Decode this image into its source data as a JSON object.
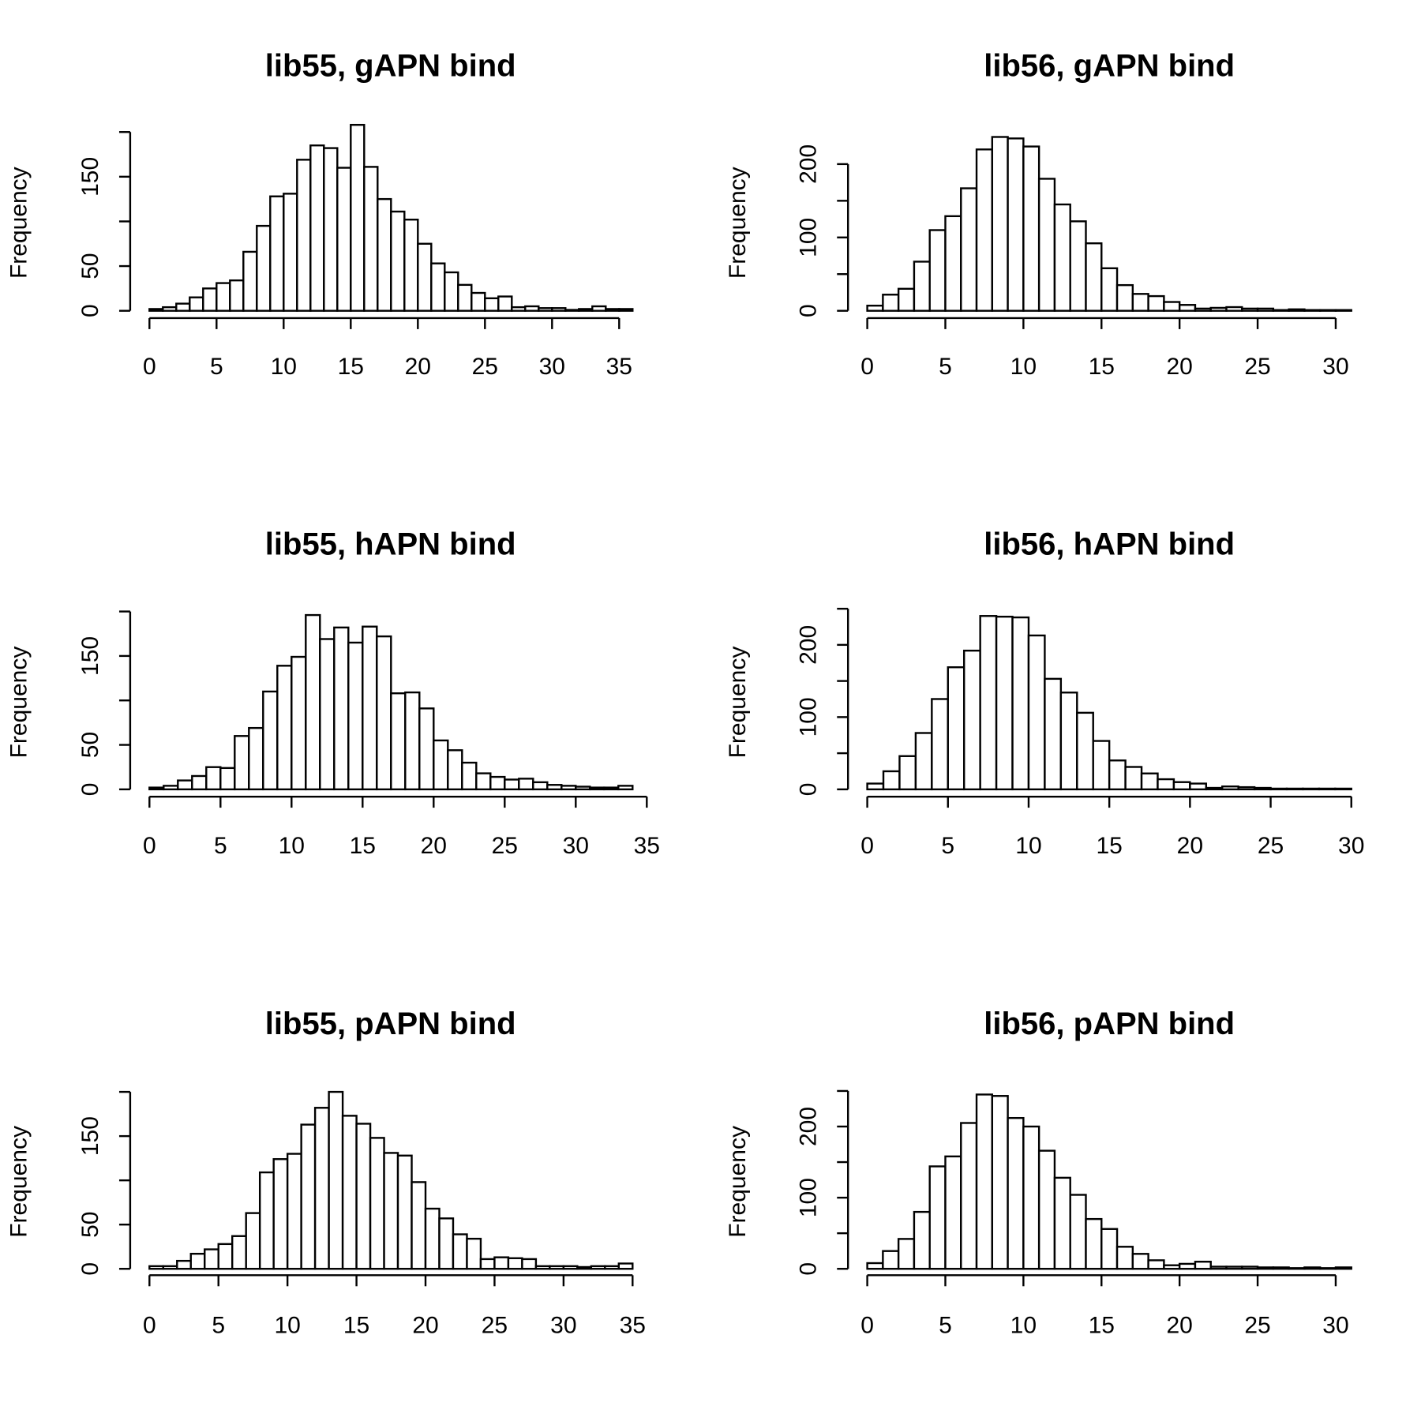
{
  "chart_data": [
    {
      "type": "bar",
      "title": "lib55, gAPN bind",
      "ylabel": "Frequency",
      "xlabel": "",
      "bin_width": 1,
      "x_start": 0,
      "values": [
        2,
        4,
        8,
        15,
        25,
        31,
        34,
        66,
        95,
        128,
        131,
        169,
        185,
        182,
        160,
        208,
        161,
        125,
        111,
        102,
        75,
        53,
        43,
        29,
        20,
        14,
        16,
        4,
        5,
        3,
        3,
        1,
        2,
        5,
        2,
        2
      ],
      "xlim": [
        0,
        36
      ],
      "ylim": [
        0,
        200
      ],
      "xticks": [
        0,
        5,
        10,
        15,
        20,
        25,
        30,
        35
      ],
      "yticks": [
        0,
        50,
        150
      ]
    },
    {
      "type": "bar",
      "title": "lib56, gAPN bind",
      "ylabel": "Frequency",
      "xlabel": "",
      "bin_width": 1,
      "x_start": 0,
      "values": [
        7,
        22,
        30,
        67,
        110,
        129,
        167,
        220,
        237,
        235,
        224,
        180,
        145,
        122,
        92,
        58,
        35,
        23,
        20,
        12,
        8,
        3,
        4,
        5,
        3,
        3,
        1,
        2,
        1,
        1,
        1
      ],
      "xlim": [
        0,
        31
      ],
      "ylim": [
        0,
        200
      ],
      "xticks": [
        0,
        5,
        10,
        15,
        20,
        25,
        30
      ],
      "yticks": [
        0,
        100,
        200
      ]
    },
    {
      "type": "bar",
      "title": "lib55, hAPN bind",
      "ylabel": "Frequency",
      "xlabel": "",
      "bin_width": 1,
      "x_start": 0,
      "values": [
        2,
        4,
        10,
        15,
        25,
        24,
        60,
        69,
        110,
        139,
        149,
        196,
        169,
        182,
        165,
        183,
        172,
        108,
        109,
        91,
        55,
        44,
        30,
        18,
        14,
        11,
        12,
        8,
        5,
        4,
        3,
        2,
        2,
        4
      ],
      "xlim": [
        0,
        34
      ],
      "ylim": [
        0,
        200
      ],
      "xticks": [
        0,
        5,
        10,
        15,
        20,
        25,
        30,
        35
      ],
      "yticks": [
        0,
        50,
        150
      ]
    },
    {
      "type": "bar",
      "title": "lib56, hAPN bind",
      "ylabel": "Frequency",
      "xlabel": "",
      "bin_width": 1,
      "x_start": 0,
      "values": [
        8,
        25,
        46,
        78,
        125,
        169,
        192,
        240,
        239,
        238,
        213,
        153,
        134,
        106,
        67,
        40,
        31,
        22,
        14,
        10,
        8,
        2,
        4,
        3,
        2,
        1,
        1,
        1,
        1,
        1
      ],
      "xlim": [
        0,
        30
      ],
      "ylim": [
        0,
        250
      ],
      "xticks": [
        0,
        5,
        10,
        15,
        20,
        25,
        30
      ],
      "yticks": [
        0,
        100,
        200
      ]
    },
    {
      "type": "bar",
      "title": "lib55, pAPN bind",
      "ylabel": "Frequency",
      "xlabel": "",
      "bin_width": 1,
      "x_start": 0,
      "values": [
        3,
        3,
        9,
        17,
        22,
        28,
        37,
        63,
        109,
        124,
        130,
        163,
        182,
        200,
        173,
        164,
        148,
        131,
        128,
        98,
        68,
        57,
        39,
        34,
        11,
        13,
        12,
        11,
        3,
        3,
        3,
        2,
        3,
        3,
        6
      ],
      "xlim": [
        0,
        35
      ],
      "ylim": [
        0,
        200
      ],
      "xticks": [
        0,
        5,
        10,
        15,
        20,
        25,
        30,
        35
      ],
      "yticks": [
        0,
        50,
        150
      ]
    },
    {
      "type": "bar",
      "title": "lib56, pAPN bind",
      "ylabel": "Frequency",
      "xlabel": "",
      "bin_width": 1,
      "x_start": 0,
      "values": [
        8,
        25,
        42,
        80,
        144,
        158,
        205,
        245,
        243,
        212,
        200,
        166,
        128,
        104,
        70,
        56,
        31,
        21,
        12,
        5,
        7,
        10,
        3,
        3,
        3,
        2,
        2,
        1,
        2,
        1,
        2
      ],
      "xlim": [
        0,
        31
      ],
      "ylim": [
        0,
        250
      ],
      "xticks": [
        0,
        5,
        10,
        15,
        20,
        25,
        30
      ],
      "yticks": [
        0,
        100,
        200
      ]
    }
  ]
}
